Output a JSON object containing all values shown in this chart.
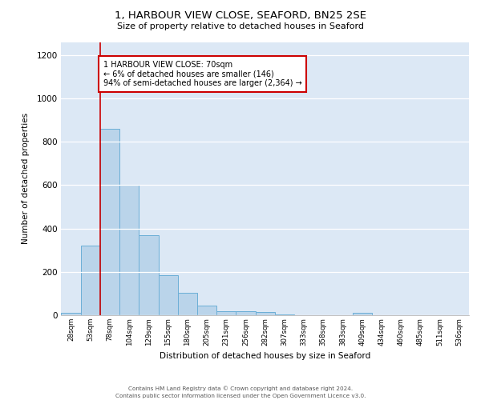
{
  "title": "1, HARBOUR VIEW CLOSE, SEAFORD, BN25 2SE",
  "subtitle": "Size of property relative to detached houses in Seaford",
  "xlabel": "Distribution of detached houses by size in Seaford",
  "ylabel": "Number of detached properties",
  "bar_color": "#bad4ea",
  "bar_edge_color": "#6baed6",
  "bg_color": "#dce8f5",
  "bin_labels": [
    "28sqm",
    "53sqm",
    "78sqm",
    "104sqm",
    "129sqm",
    "155sqm",
    "180sqm",
    "205sqm",
    "231sqm",
    "256sqm",
    "282sqm",
    "307sqm",
    "333sqm",
    "358sqm",
    "383sqm",
    "409sqm",
    "434sqm",
    "460sqm",
    "485sqm",
    "511sqm",
    "536sqm"
  ],
  "bar_values": [
    10,
    320,
    860,
    600,
    370,
    185,
    105,
    45,
    18,
    18,
    15,
    2,
    0,
    0,
    0,
    10,
    0,
    0,
    0,
    0,
    0
  ],
  "red_line_x": 2,
  "annotation_title": "1 HARBOUR VIEW CLOSE: 70sqm",
  "annotation_line1": "← 6% of detached houses are smaller (146)",
  "annotation_line2": "94% of semi-detached houses are larger (2,364) →",
  "ylim": [
    0,
    1260
  ],
  "yticks": [
    0,
    200,
    400,
    600,
    800,
    1000,
    1200
  ],
  "footer1": "Contains HM Land Registry data © Crown copyright and database right 2024.",
  "footer2": "Contains public sector information licensed under the Open Government Licence v3.0."
}
